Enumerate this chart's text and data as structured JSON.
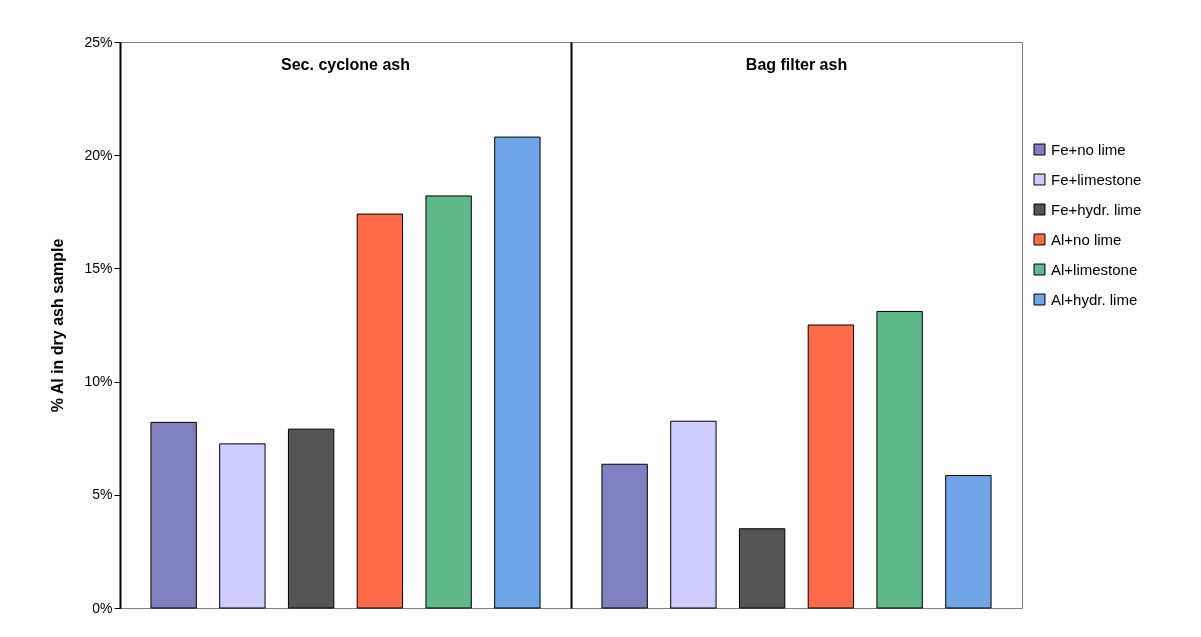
{
  "chart_data": {
    "type": "bar",
    "ylabel": "% Al in dry ash sample",
    "categories": [
      "Sec. cyclone ash",
      "Bag filter ash"
    ],
    "series": [
      {
        "name": "Fe+no lime",
        "color": "#8080c0",
        "values": [
          8.2,
          6.35
        ]
      },
      {
        "name": "Fe+limestone",
        "color": "#ccccff",
        "values": [
          7.25,
          8.25
        ]
      },
      {
        "name": "Fe+hydr. lime",
        "color": "#555555",
        "values": [
          7.9,
          3.5
        ]
      },
      {
        "name": "Al+no lime",
        "color": "#ff6a4a",
        "values": [
          17.4,
          12.5
        ]
      },
      {
        "name": "Al+limestone",
        "color": "#5fb88a",
        "values": [
          18.2,
          13.1
        ]
      },
      {
        "name": "Al+hydr. lime",
        "color": "#6fa6e8",
        "values": [
          20.8,
          5.85
        ]
      }
    ],
    "ylim": [
      0,
      25
    ],
    "yticks": [
      {
        "value": 0,
        "label": "0%"
      },
      {
        "value": 5,
        "label": "5%"
      },
      {
        "value": 10,
        "label": "10%"
      },
      {
        "value": 15,
        "label": "15%"
      },
      {
        "value": 20,
        "label": "20%"
      },
      {
        "value": 25,
        "label": "25%"
      }
    ],
    "grid": "x",
    "legend": "right"
  }
}
